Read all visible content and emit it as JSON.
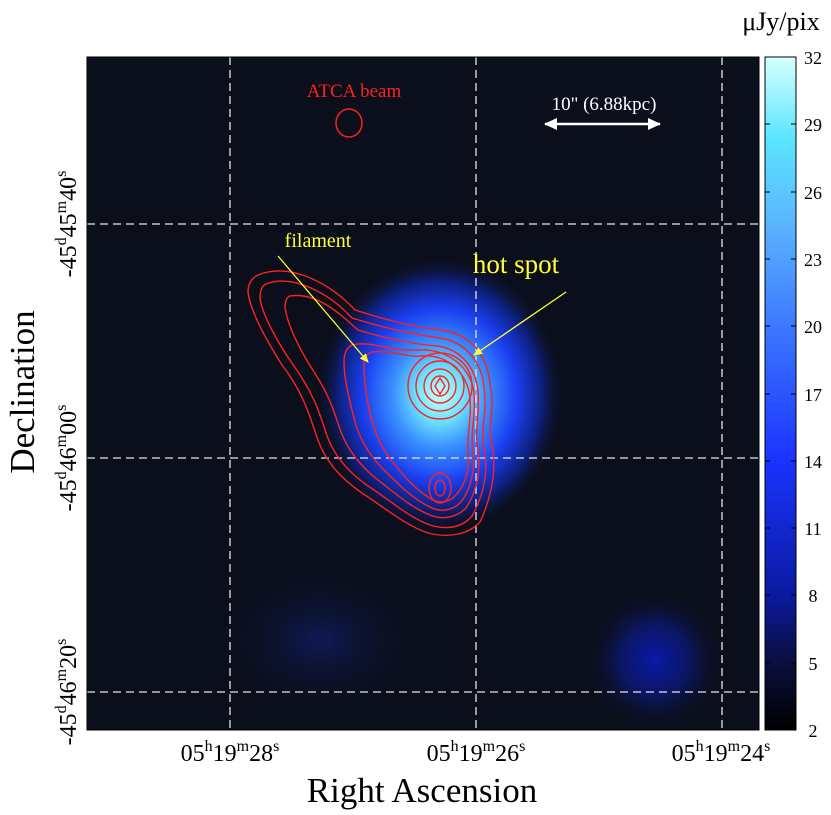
{
  "figure": {
    "colorbar": {
      "unit": "μJy/pix",
      "ticks": [
        "32",
        "29",
        "26",
        "23",
        "20",
        "17",
        "14",
        "11",
        "8",
        "5",
        "2"
      ],
      "colors": [
        "#000000",
        "#0a0f3c",
        "#0a1aa0",
        "#1a33ff",
        "#3c78ff",
        "#5ab4ff",
        "#5ae6ff",
        "#d7ffff"
      ]
    },
    "axes": {
      "xlabel": "Right Ascension",
      "ylabel": "Declination",
      "xticks": [
        {
          "h": "05",
          "m": "19",
          "s": "28"
        },
        {
          "h": "05",
          "m": "19",
          "s": "26"
        },
        {
          "h": "05",
          "m": "19",
          "s": "24"
        }
      ],
      "yticks": [
        {
          "d": "-45",
          "m": "45",
          "s": "40"
        },
        {
          "d": "-45",
          "m": "46",
          "s": "00"
        },
        {
          "d": "-45",
          "m": "46",
          "s": "20"
        }
      ]
    },
    "annotations": {
      "beam": "ATCA beam",
      "scale": "10\" (6.88kpc)",
      "filament": "filament",
      "hotspot": "hot spot"
    },
    "style": {
      "background": "#0b0f1c",
      "contour": "#ff2020",
      "annotation": "#ffff33",
      "grid": "#e6e6e6"
    }
  }
}
